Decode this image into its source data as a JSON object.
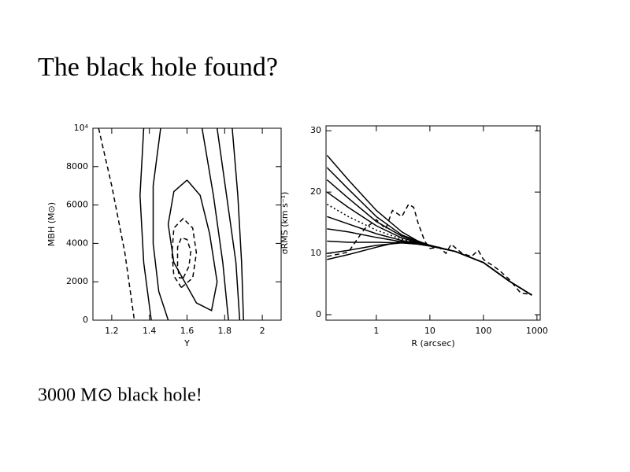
{
  "title": "The black hole found?",
  "caption": "3000 M⊙ black hole!",
  "chart_data": [
    {
      "type": "contour",
      "xlabel": "Υ",
      "ylabel": "MBH (M⊙)",
      "xlim": [
        1.1,
        2.1
      ],
      "xticks": [
        1.2,
        1.4,
        1.6,
        1.8,
        2
      ],
      "ylim": [
        0,
        10000
      ],
      "yticks": [
        0,
        2000,
        4000,
        6000,
        8000,
        {
          "value": 10000,
          "label": "10⁴"
        }
      ],
      "series": [
        {
          "style": "dashed",
          "color": "#000",
          "x": [
            1.58,
            1.61,
            1.62,
            1.6,
            1.57,
            1.55,
            1.55,
            1.56,
            1.58
          ],
          "values": [
            2200,
            2800,
            3600,
            4200,
            4300,
            3800,
            2800,
            2200,
            2200
          ]
        },
        {
          "style": "dashed",
          "color": "#000",
          "x": [
            1.57,
            1.63,
            1.65,
            1.63,
            1.58,
            1.53,
            1.52,
            1.53,
            1.57
          ],
          "values": [
            1700,
            2200,
            3500,
            4800,
            5300,
            4800,
            3500,
            2300,
            1700
          ]
        },
        {
          "style": "solid",
          "color": "#000",
          "x": [
            1.6,
            1.67,
            1.72,
            1.76,
            1.73,
            1.65,
            1.53,
            1.5,
            1.53,
            1.6
          ],
          "values": [
            7300,
            6500,
            4500,
            2000,
            500,
            900,
            3000,
            5000,
            6700,
            7300
          ]
        },
        {
          "style": "dashed",
          "color": "#000",
          "x": [
            1.13,
            1.2,
            1.27,
            1.32
          ],
          "values": [
            10000,
            7000,
            3500,
            0
          ]
        },
        {
          "style": "solid",
          "color": "#000",
          "x": [
            1.46,
            1.42,
            1.42,
            1.45,
            1.5
          ],
          "values": [
            10000,
            7000,
            4000,
            1500,
            0
          ]
        },
        {
          "style": "solid",
          "color": "#000",
          "x": [
            1.68,
            1.74,
            1.79,
            1.82
          ],
          "values": [
            10000,
            6500,
            3000,
            0
          ]
        },
        {
          "style": "solid",
          "color": "#000",
          "x": [
            1.37,
            1.35,
            1.37,
            1.41
          ],
          "values": [
            10000,
            6500,
            3000,
            0
          ]
        },
        {
          "style": "solid",
          "color": "#000",
          "x": [
            1.76,
            1.81,
            1.86,
            1.88
          ],
          "values": [
            10000,
            6500,
            3000,
            0
          ]
        },
        {
          "style": "solid",
          "color": "#000",
          "x": [
            1.84,
            1.87,
            1.89,
            1.9
          ],
          "values": [
            10000,
            6500,
            3000,
            0
          ]
        }
      ]
    },
    {
      "type": "line",
      "xlabel": "R (arcsec)",
      "ylabel": "σRMS (km s⁻¹)",
      "xlog": true,
      "xlim": [
        0.115,
        1150
      ],
      "xticks": [
        1,
        10,
        100,
        1000
      ],
      "ylim": [
        -0.9,
        30.8
      ],
      "yticks": [
        0,
        10,
        20,
        30
      ],
      "series": [
        {
          "style": "solid",
          "color": "#000",
          "x": [
            0.12,
            0.3,
            1,
            3,
            6,
            10,
            30,
            100,
            300,
            800
          ],
          "values": [
            26,
            22,
            17,
            13.5,
            12,
            11.3,
            10.3,
            8.5,
            5.5,
            3.2
          ]
        },
        {
          "style": "solid",
          "color": "#000",
          "x": [
            0.12,
            0.3,
            1,
            3,
            6,
            10,
            30,
            100,
            300,
            800
          ],
          "values": [
            24,
            20.5,
            16,
            13,
            12,
            11.3,
            10.3,
            8.5,
            5.5,
            3.2
          ]
        },
        {
          "style": "solid",
          "color": "#000",
          "x": [
            0.12,
            0.3,
            1,
            3,
            6,
            10,
            30,
            100,
            300,
            800
          ],
          "values": [
            22,
            19,
            15.2,
            12.8,
            11.9,
            11.3,
            10.3,
            8.5,
            5.5,
            3.2
          ]
        },
        {
          "style": "solid",
          "color": "#000",
          "x": [
            0.12,
            0.3,
            1,
            3,
            6,
            10,
            30,
            100,
            300,
            800
          ],
          "values": [
            20,
            17.5,
            14.5,
            12.5,
            11.8,
            11.3,
            10.3,
            8.5,
            5.5,
            3.2
          ]
        },
        {
          "style": "dotted",
          "color": "#000",
          "x": [
            0.12,
            0.3,
            1,
            3,
            6,
            10,
            30,
            100,
            300,
            800
          ],
          "values": [
            18,
            16,
            13.8,
            12.3,
            11.7,
            11.2,
            10.3,
            8.5,
            5.5,
            3.2
          ]
        },
        {
          "style": "solid",
          "color": "#000",
          "x": [
            0.12,
            0.3,
            1,
            3,
            6,
            10,
            30,
            100,
            300,
            800
          ],
          "values": [
            16,
            14.8,
            13.2,
            12.1,
            11.6,
            11.2,
            10.3,
            8.5,
            5.5,
            3.2
          ]
        },
        {
          "style": "solid",
          "color": "#000",
          "x": [
            0.12,
            0.3,
            1,
            3,
            6,
            10,
            30,
            100,
            300,
            800
          ],
          "values": [
            14,
            13.5,
            12.6,
            11.9,
            11.6,
            11.2,
            10.3,
            8.5,
            5.5,
            3.2
          ]
        },
        {
          "style": "solid",
          "color": "#000",
          "x": [
            0.12,
            0.3,
            1,
            3,
            6,
            10,
            30,
            100,
            300,
            800
          ],
          "values": [
            12,
            11.8,
            11.8,
            11.7,
            11.5,
            11.2,
            10.3,
            8.5,
            5.5,
            3.2
          ]
        },
        {
          "style": "solid",
          "color": "#000",
          "x": [
            0.12,
            0.3,
            1,
            3,
            6,
            10,
            30,
            100,
            300,
            800
          ],
          "values": [
            10,
            10.5,
            11.3,
            11.7,
            11.5,
            11.2,
            10.3,
            8.5,
            5.5,
            3.2
          ]
        },
        {
          "style": "solid",
          "color": "#000",
          "x": [
            0.12,
            0.3,
            1,
            3,
            6,
            10,
            30,
            100,
            300,
            800
          ],
          "values": [
            9,
            9.8,
            11,
            12,
            11.8,
            11.2,
            10.3,
            8.5,
            5.5,
            3.2
          ]
        },
        {
          "style": "dashed",
          "color": "#000",
          "x": [
            0.12,
            0.3,
            0.6,
            1,
            1.5,
            2,
            3,
            4,
            5,
            6,
            8,
            10,
            15,
            20,
            25,
            40,
            60,
            80,
            100,
            150,
            200,
            300,
            500,
            800
          ],
          "values": [
            9.5,
            10.2,
            14,
            15.5,
            14,
            17,
            16,
            18,
            17.5,
            15,
            12,
            10.8,
            11,
            10,
            11.5,
            10,
            9.5,
            10.5,
            9,
            8,
            7.2,
            5.8,
            3.5,
            3.3
          ]
        }
      ]
    }
  ]
}
